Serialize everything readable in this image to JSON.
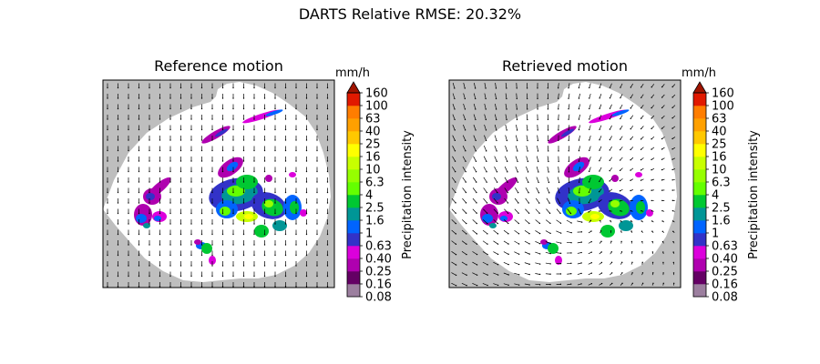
{
  "figure": {
    "suptitle": "DARTS Relative RMSE: 20.32%"
  },
  "chart_data": [
    {
      "type": "heatmap",
      "title": "Reference motion",
      "colorbar": {
        "unit": "mm/h",
        "label": "Precipitation intensity",
        "ticks": [
          "0.08",
          "0.16",
          "0.25",
          "0.40",
          "0.63",
          "1",
          "1.6",
          "2.5",
          "4",
          "6.3",
          "10",
          "16",
          "25",
          "40",
          "63",
          "100",
          "160"
        ],
        "colors": [
          "#9c7f9f",
          "#640064",
          "#af00af",
          "#dc00dc",
          "#3232c8",
          "#0064ff",
          "#009696",
          "#00c832",
          "#64ff00",
          "#96ff00",
          "#c8ff00",
          "#ffff00",
          "#ffc800",
          "#ffa000",
          "#ff7d00",
          "#e11900"
        ],
        "extend_color": "#a01400"
      },
      "vector_field": "uniform southward motion"
    },
    {
      "type": "heatmap",
      "title": "Retrieved motion",
      "colorbar": {
        "unit": "mm/h",
        "label": "Precipitation intensity",
        "ticks": [
          "0.08",
          "0.16",
          "0.25",
          "0.40",
          "0.63",
          "1",
          "1.6",
          "2.5",
          "4",
          "6.3",
          "10",
          "16",
          "25",
          "40",
          "63",
          "100",
          "160"
        ],
        "colors": [
          "#9c7f9f",
          "#640064",
          "#af00af",
          "#dc00dc",
          "#3232c8",
          "#0064ff",
          "#009696",
          "#00c832",
          "#64ff00",
          "#96ff00",
          "#c8ff00",
          "#ffff00",
          "#ffc800",
          "#ffa000",
          "#ff7d00",
          "#e11900"
        ],
        "extend_color": "#a01400"
      },
      "vector_field": "converging rotational motion"
    }
  ],
  "colors": {
    "outside_radar": "#bebebe",
    "inside_radar": "#ffffff"
  }
}
